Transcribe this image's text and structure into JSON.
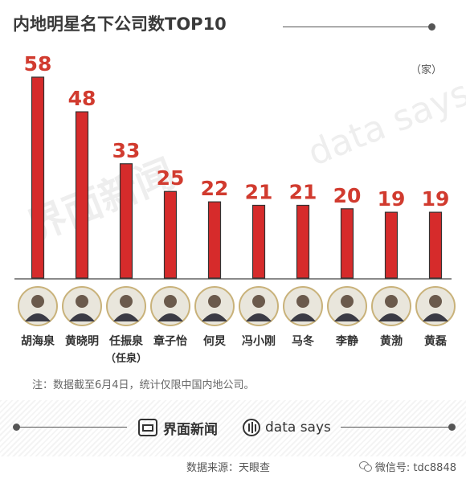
{
  "header": {
    "title": "内地明星名下公司数TOP10"
  },
  "unit_label": "（家）",
  "watermark": {
    "left_text": "界面新闻",
    "right_text": "data says"
  },
  "chart_data": {
    "type": "bar",
    "title": "内地明星名下公司数TOP10",
    "unit": "（家）",
    "categories": [
      "胡海泉",
      "黄晓明",
      "任振泉",
      "章子怡",
      "何炅",
      "冯小刚",
      "马冬",
      "李静",
      "黄渤",
      "黄磊"
    ],
    "values": [
      58,
      48,
      33,
      25,
      22,
      21,
      21,
      20,
      19,
      19
    ],
    "ylim": [
      0,
      62
    ],
    "grid": false,
    "bar_color": "#d62b2b",
    "label_color": "#d13b2f"
  },
  "people": [
    {
      "name": "胡海泉",
      "sub": ""
    },
    {
      "name": "黄晓明",
      "sub": ""
    },
    {
      "name": "任振泉",
      "sub": "（任泉）"
    },
    {
      "name": "章子怡",
      "sub": ""
    },
    {
      "name": "何炅",
      "sub": ""
    },
    {
      "name": "冯小刚",
      "sub": ""
    },
    {
      "name": "马冬",
      "sub": ""
    },
    {
      "name": "李静",
      "sub": ""
    },
    {
      "name": "黄渤",
      "sub": ""
    },
    {
      "name": "黄磊",
      "sub": ""
    }
  ],
  "note": "注：数据截至6月4日，统计仅限中国内地公司。",
  "footer": {
    "brand_jiemian": "界面新闻",
    "brand_datasays": "data says",
    "source": "数据来源：天眼查",
    "wechat": "微信号: tdc8848"
  }
}
